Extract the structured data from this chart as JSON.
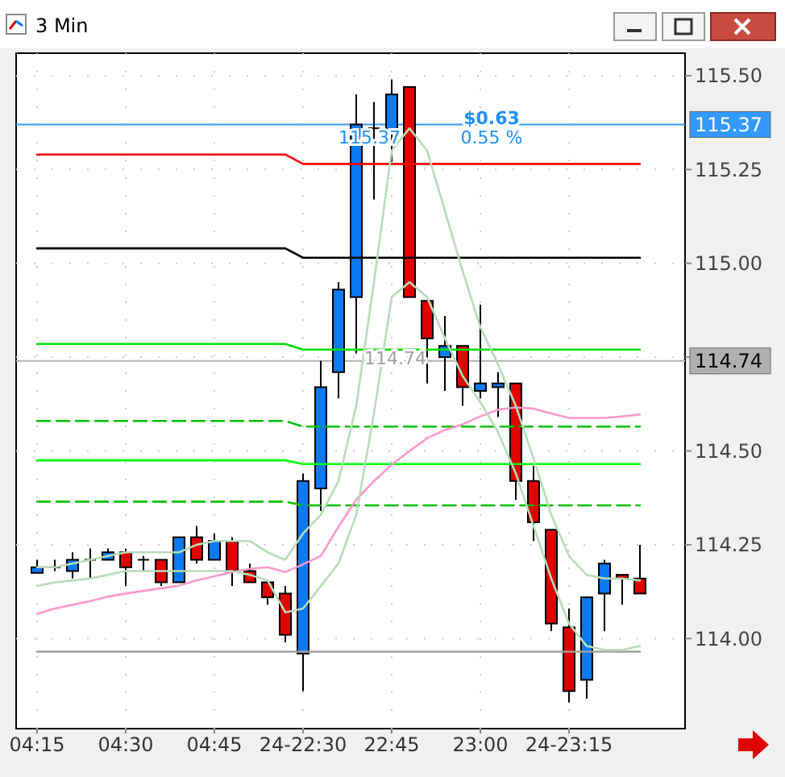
{
  "chart_data": {
    "type": "candlestick",
    "title": "3 Min",
    "categories": [
      "04:15",
      null,
      null,
      null,
      null,
      "04:30",
      null,
      null,
      null,
      null,
      "04:45",
      null,
      null,
      null,
      null,
      "24-22:30",
      null,
      null,
      null,
      null,
      "22:45",
      null,
      null,
      null,
      null,
      "23:00",
      null,
      null,
      null,
      null,
      "24-23:15",
      null,
      null,
      null,
      null
    ],
    "ohlc": [
      [
        114.175,
        114.21,
        114.175,
        114.19
      ],
      [
        114.19,
        114.21,
        114.18,
        114.19
      ],
      [
        114.18,
        114.23,
        114.16,
        114.21
      ],
      [
        114.21,
        114.24,
        114.16,
        114.21
      ],
      [
        114.21,
        114.24,
        114.21,
        114.23
      ],
      [
        114.23,
        114.24,
        114.14,
        114.19
      ],
      [
        114.21,
        114.22,
        114.18,
        114.21
      ],
      [
        114.21,
        114.21,
        114.14,
        114.15
      ],
      [
        114.15,
        114.27,
        114.15,
        114.27
      ],
      [
        114.27,
        114.3,
        114.2,
        114.21
      ],
      [
        114.21,
        114.28,
        114.21,
        114.26
      ],
      [
        114.26,
        114.27,
        114.14,
        114.18
      ],
      [
        114.18,
        114.2,
        114.15,
        114.15
      ],
      [
        114.15,
        114.15,
        114.09,
        114.11
      ],
      [
        114.12,
        114.14,
        113.99,
        114.01
      ],
      [
        113.96,
        114.44,
        113.86,
        114.42
      ],
      [
        114.4,
        114.74,
        114.34,
        114.67
      ],
      [
        114.71,
        114.95,
        114.64,
        114.93
      ],
      [
        114.91,
        115.45,
        114.76,
        115.37
      ],
      [
        115.36,
        115.43,
        115.17,
        115.36
      ],
      [
        115.35,
        115.49,
        115.27,
        115.45
      ],
      [
        115.47,
        115.47,
        114.91,
        114.91
      ],
      [
        114.9,
        114.9,
        114.68,
        114.8
      ],
      [
        114.75,
        114.86,
        114.66,
        114.78
      ],
      [
        114.78,
        114.78,
        114.62,
        114.67
      ],
      [
        114.66,
        114.89,
        114.64,
        114.68
      ],
      [
        114.67,
        114.71,
        114.59,
        114.68
      ],
      [
        114.68,
        114.68,
        114.37,
        114.42
      ],
      [
        114.42,
        114.46,
        114.26,
        114.31
      ],
      [
        114.29,
        114.29,
        114.02,
        114.04
      ],
      [
        114.03,
        114.08,
        113.83,
        113.86
      ],
      [
        113.89,
        114.11,
        113.84,
        114.11
      ],
      [
        114.12,
        114.21,
        114.02,
        114.2
      ],
      [
        114.17,
        114.17,
        114.09,
        114.16
      ],
      [
        114.16,
        114.25,
        114.12,
        114.12
      ]
    ],
    "colors": [
      "#0a7af5",
      "#000000",
      "#0a7af5",
      "#000000",
      "#0a7af5",
      "#e00000",
      "#000000",
      "#e00000",
      "#0a7af5",
      "#e00000",
      "#0a7af5",
      "#e00000",
      "#e00000",
      "#e00000",
      "#e00000",
      "#0a7af5",
      "#0a7af5",
      "#0a7af5",
      "#0a7af5",
      "#000000",
      "#0a7af5",
      "#e00000",
      "#e00000",
      "#0a7af5",
      "#e00000",
      "#0a7af5",
      "#0a7af5",
      "#e00000",
      "#e00000",
      "#e00000",
      "#e00000",
      "#0a7af5",
      "#0a7af5",
      "#e00000",
      "#e00000"
    ],
    "series": [
      {
        "type": "line",
        "color": "#ff0000",
        "line_style": "solid",
        "values": [
          115.29,
          115.29,
          115.29,
          115.29,
          115.29,
          115.29,
          115.29,
          115.29,
          115.29,
          115.29,
          115.29,
          115.29,
          115.29,
          115.29,
          115.29,
          115.265,
          115.265,
          115.265,
          115.265,
          115.265,
          115.265,
          115.265,
          115.265,
          115.265,
          115.265,
          115.265,
          115.265,
          115.265,
          115.265,
          115.265,
          115.265,
          115.265,
          115.265,
          115.265,
          115.265
        ]
      },
      {
        "type": "line",
        "color": "#000000",
        "line_style": "solid",
        "values": [
          115.04,
          115.04,
          115.04,
          115.04,
          115.04,
          115.04,
          115.04,
          115.04,
          115.04,
          115.04,
          115.04,
          115.04,
          115.04,
          115.04,
          115.04,
          115.015,
          115.015,
          115.015,
          115.015,
          115.015,
          115.015,
          115.015,
          115.015,
          115.015,
          115.015,
          115.015,
          115.015,
          115.015,
          115.015,
          115.015,
          115.015,
          115.015,
          115.015,
          115.015,
          115.015
        ]
      },
      {
        "type": "line",
        "color": "#00e000",
        "line_style": "solid",
        "values": [
          114.785,
          114.785,
          114.785,
          114.785,
          114.785,
          114.785,
          114.785,
          114.785,
          114.785,
          114.785,
          114.785,
          114.785,
          114.785,
          114.785,
          114.785,
          114.77,
          114.77,
          114.77,
          114.77,
          114.77,
          114.77,
          114.77,
          114.77,
          114.77,
          114.77,
          114.77,
          114.77,
          114.77,
          114.77,
          114.77,
          114.77,
          114.77,
          114.77,
          114.77,
          114.77
        ]
      },
      {
        "type": "line",
        "color": "#00c000",
        "line_style": "dashed",
        "values": [
          114.58,
          114.58,
          114.58,
          114.58,
          114.58,
          114.58,
          114.58,
          114.58,
          114.58,
          114.58,
          114.58,
          114.58,
          114.58,
          114.58,
          114.58,
          114.565,
          114.565,
          114.565,
          114.565,
          114.565,
          114.565,
          114.565,
          114.565,
          114.565,
          114.565,
          114.565,
          114.565,
          114.565,
          114.565,
          114.565,
          114.565,
          114.565,
          114.565,
          114.565,
          114.565
        ]
      },
      {
        "type": "line",
        "color": "#00ff00",
        "line_style": "solid",
        "values": [
          114.475,
          114.475,
          114.475,
          114.475,
          114.475,
          114.475,
          114.475,
          114.475,
          114.475,
          114.475,
          114.475,
          114.475,
          114.475,
          114.475,
          114.475,
          114.465,
          114.465,
          114.465,
          114.465,
          114.465,
          114.465,
          114.465,
          114.465,
          114.465,
          114.465,
          114.465,
          114.465,
          114.465,
          114.465,
          114.465,
          114.465,
          114.465,
          114.465,
          114.465,
          114.465
        ]
      },
      {
        "type": "line",
        "color": "#00c000",
        "line_style": "dashed",
        "values": [
          114.365,
          114.365,
          114.365,
          114.365,
          114.365,
          114.365,
          114.365,
          114.365,
          114.365,
          114.365,
          114.365,
          114.365,
          114.365,
          114.365,
          114.365,
          114.355,
          114.355,
          114.355,
          114.355,
          114.355,
          114.355,
          114.355,
          114.355,
          114.355,
          114.355,
          114.355,
          114.355,
          114.355,
          114.355,
          114.355,
          114.355,
          114.355,
          114.355,
          114.355,
          114.355
        ]
      },
      {
        "type": "line",
        "color": "#a0a0a0",
        "line_style": "solid",
        "values": [
          113.965,
          113.965,
          113.965,
          113.965,
          113.965,
          113.965,
          113.965,
          113.965,
          113.965,
          113.965,
          113.965,
          113.965,
          113.965,
          113.965,
          113.965,
          113.965,
          113.965,
          113.965,
          113.965,
          113.965,
          113.965,
          113.965,
          113.965,
          113.965,
          113.965,
          113.965,
          113.965,
          113.965,
          113.965,
          113.965,
          113.965,
          113.965,
          113.965,
          113.965,
          113.965
        ]
      },
      {
        "type": "line",
        "color": "#ff99cc",
        "line_style": "solid",
        "values": [
          114.066,
          114.08,
          114.09,
          114.1,
          114.112,
          114.12,
          114.127,
          114.134,
          114.141,
          114.155,
          114.166,
          114.177,
          114.186,
          114.19,
          114.177,
          114.198,
          114.22,
          114.298,
          114.37,
          114.42,
          114.463,
          114.5,
          114.534,
          114.556,
          114.571,
          114.592,
          114.61,
          114.616,
          114.613,
          114.6,
          114.588,
          114.588,
          114.588,
          114.592,
          114.597
        ]
      },
      {
        "type": "line",
        "color": "#b8dcb8",
        "line_style": "solid",
        "values": [
          114.19,
          114.19,
          114.2,
          114.21,
          114.22,
          114.23,
          114.23,
          114.23,
          114.23,
          114.25,
          114.26,
          114.26,
          114.26,
          114.23,
          114.21,
          114.28,
          114.33,
          114.42,
          114.62,
          114.95,
          115.3,
          115.36,
          115.3,
          115.14,
          114.98,
          114.83,
          114.73,
          114.62,
          114.48,
          114.33,
          114.22,
          114.17,
          114.16,
          114.16,
          114.155
        ]
      },
      {
        "type": "line",
        "color": "#b8dcb8",
        "line_style": "solid",
        "values": [
          114.14,
          114.15,
          114.155,
          114.16,
          114.17,
          114.18,
          114.18,
          114.18,
          114.18,
          114.18,
          114.18,
          114.18,
          114.17,
          114.155,
          114.07,
          114.08,
          114.14,
          114.2,
          114.33,
          114.6,
          114.91,
          114.95,
          114.91,
          114.8,
          114.7,
          114.63,
          114.55,
          114.44,
          114.3,
          114.16,
          114.04,
          113.98,
          113.97,
          113.97,
          113.98
        ]
      }
    ],
    "ylim": [
      113.76,
      115.56
    ],
    "yticks": [
      {
        "value": 114,
        "label": "114.00"
      },
      {
        "value": 114.25,
        "label": "114.25"
      },
      {
        "value": 114.5,
        "label": "114.50"
      },
      {
        "value": 114.75,
        "label": null
      },
      {
        "value": 115,
        "label": "115.00"
      },
      {
        "value": 115.25,
        "label": "115.25"
      },
      {
        "value": 115.5,
        "label": "115.50"
      }
    ],
    "grid": true,
    "ref_lines": [
      {
        "axis": "y",
        "value": 115.37,
        "label": "115.37",
        "color": "#3399ff"
      },
      {
        "axis": "y",
        "value": 114.74,
        "label": "114.74",
        "color": "#b0b0b0"
      }
    ],
    "annotations": [
      "$0.63",
      "0.55 %",
      "115.37",
      "114.74"
    ]
  }
}
